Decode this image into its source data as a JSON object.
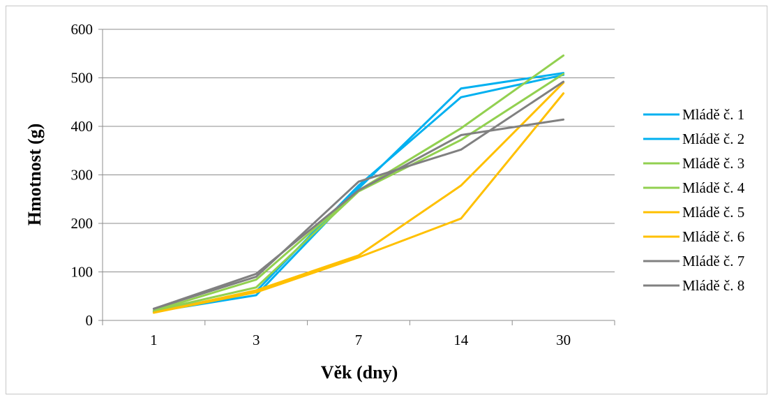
{
  "chart_data": {
    "type": "line",
    "categories": [
      "1",
      "3",
      "7",
      "14",
      "30"
    ],
    "xlabel": "Věk (dny)",
    "ylabel": "Hmotnost  (g)",
    "ylim": [
      0,
      600
    ],
    "yticks": [
      0,
      100,
      200,
      300,
      400,
      500,
      600
    ],
    "grid": true,
    "legend_position": "right",
    "series": [
      {
        "name": "Mládě č. 1",
        "color": "#00b0f0",
        "values": [
          18,
          52,
          272,
          478,
          510
        ]
      },
      {
        "name": "Mládě č. 2",
        "color": "#00b0f0",
        "values": [
          18,
          60,
          278,
          460,
          506
        ]
      },
      {
        "name": "Mládě č. 3",
        "color": "#92d050",
        "values": [
          20,
          84,
          268,
          396,
          546
        ]
      },
      {
        "name": "Mládě č. 4",
        "color": "#92d050",
        "values": [
          20,
          68,
          266,
          372,
          508
        ]
      },
      {
        "name": "Mládě č. 5",
        "color": "#ffc000",
        "values": [
          16,
          62,
          134,
          278,
          490
        ]
      },
      {
        "name": "Mládě č. 6",
        "color": "#ffc000",
        "values": [
          16,
          58,
          130,
          210,
          468
        ]
      },
      {
        "name": "Mládě č. 7",
        "color": "#808080",
        "values": [
          24,
          96,
          268,
          382,
          414
        ]
      },
      {
        "name": "Mládě č. 8",
        "color": "#808080",
        "values": [
          24,
          90,
          286,
          352,
          492
        ]
      }
    ]
  }
}
